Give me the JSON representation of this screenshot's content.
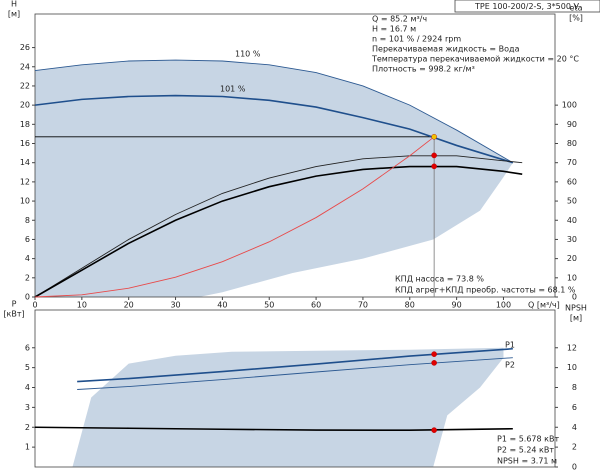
{
  "title": "TPE 100-200/2-S, 3*500 V",
  "chart_data": [
    {
      "type": "line",
      "ylabel": [
        "H",
        "[м]"
      ],
      "y2label": [
        "eta",
        "[%]"
      ],
      "xlabel": "Q [м³/ч]",
      "xlim": [
        0,
        111
      ],
      "xticks": [
        0,
        10,
        20,
        30,
        40,
        50,
        60,
        70,
        80,
        90,
        100
      ],
      "ylim": [
        0,
        29.5
      ],
      "yticks": [
        0,
        2,
        4,
        6,
        8,
        10,
        12,
        14,
        16,
        18,
        20,
        22,
        24,
        26
      ],
      "y2lim": [
        0,
        147.5
      ],
      "y2ticks": [
        0,
        10,
        20,
        30,
        40,
        50,
        60,
        70,
        80,
        90,
        100
      ],
      "area": {
        "color": "#c7d5e4",
        "x": [
          0,
          10,
          20,
          30,
          40,
          50,
          60,
          70,
          80,
          90,
          102,
          100,
          95,
          85,
          70,
          55,
          40,
          35,
          8,
          0
        ],
        "values": [
          23.6,
          24.2,
          24.6,
          24.7,
          24.6,
          24.2,
          23.4,
          22.0,
          20.0,
          17.4,
          14.0,
          12.5,
          9.0,
          6.0,
          4.0,
          2.5,
          0.5,
          0,
          0,
          0
        ]
      },
      "series": [
        {
          "name": "110 %",
          "color": "#2d5a92",
          "x": [
            0,
            10,
            20,
            30,
            40,
            50,
            60,
            70,
            80,
            90,
            102
          ],
          "values": [
            23.6,
            24.2,
            24.6,
            24.7,
            24.6,
            24.2,
            23.4,
            22.0,
            20.0,
            17.4,
            14.0
          ]
        },
        {
          "name": "101 %",
          "color": "#1f4f8c",
          "x": [
            0,
            10,
            20,
            30,
            40,
            50,
            60,
            70,
            80,
            90,
            102
          ],
          "values": [
            20.0,
            20.6,
            20.9,
            21.0,
            20.9,
            20.5,
            19.8,
            18.7,
            17.5,
            15.8,
            14.0
          ]
        },
        {
          "color": "#222222",
          "axis": "y2",
          "x": [
            0,
            10,
            20,
            30,
            40,
            50,
            60,
            70,
            80,
            90,
            100,
            104
          ],
          "values": [
            0,
            15,
            30,
            43,
            54,
            62,
            68,
            72,
            73.6,
            73.6,
            71,
            70
          ]
        },
        {
          "color": "#000000",
          "axis": "y2",
          "x": [
            0,
            10,
            20,
            30,
            40,
            50,
            60,
            70,
            80,
            90,
            100,
            104
          ],
          "values": [
            0,
            14,
            28,
            40,
            50,
            57.5,
            63,
            66.5,
            68,
            68,
            65.5,
            64
          ]
        },
        {
          "color": "#e84a4a",
          "x": [
            0,
            10,
            20,
            30,
            40,
            50,
            60,
            70,
            80,
            85.2
          ],
          "values": [
            0,
            0.23,
            0.92,
            2.07,
            3.68,
            5.75,
            8.28,
            11.27,
            14.72,
            16.7
          ]
        }
      ],
      "markers": [
        {
          "x": 85.2,
          "value": 16.7,
          "color": "#f2c200"
        },
        {
          "x": 85.2,
          "value": 73.8,
          "axis": "y2",
          "color": "#e00000"
        },
        {
          "x": 85.2,
          "value": 68.1,
          "axis": "y2",
          "color": "#e00000"
        }
      ],
      "annotations": [
        "Q = 85.2 м³/ч",
        "H = 16.7 м",
        "n = 101 % / 2924 rpm",
        "Перекачиваемая жидкость = Вода",
        "Температура перекачиваемой жидкости = 20 °C",
        "Плотность = 998.2 кг/м³"
      ],
      "notes": [
        "КПД насоса = 73.8 %",
        "КПД агрег+КПД преобр. частоты = 68.1 %"
      ]
    },
    {
      "type": "line",
      "ylabel": [
        "P",
        "[кВт]"
      ],
      "y2label": [
        "NPSH",
        "[м]"
      ],
      "xlim": [
        0,
        111
      ],
      "ylim": [
        0,
        7.9
      ],
      "yticks": [
        1,
        2,
        3,
        4,
        5,
        6
      ],
      "y2lim": [
        0,
        15.8
      ],
      "y2ticks": [
        0,
        2,
        4,
        6,
        8,
        10,
        12
      ],
      "area": {
        "color": "#c7d5e4",
        "x": [
          8,
          12,
          20,
          30,
          42,
          60,
          80,
          100,
          100,
          95,
          88,
          85,
          8
        ],
        "values": [
          0,
          3.5,
          5.2,
          5.6,
          5.8,
          5.85,
          5.9,
          6.0,
          5.5,
          4.0,
          2.6,
          0,
          0
        ]
      },
      "series": [
        {
          "name": "P1",
          "color": "#1f4f8c",
          "x": [
            9,
            20,
            40,
            60,
            80,
            102
          ],
          "values": [
            4.3,
            4.45,
            4.8,
            5.18,
            5.58,
            5.95
          ]
        },
        {
          "name": "P2",
          "color": "#2d5a92",
          "x": [
            9,
            20,
            40,
            60,
            80,
            102
          ],
          "values": [
            3.9,
            4.05,
            4.4,
            4.78,
            5.15,
            5.5
          ]
        },
        {
          "color": "#000000",
          "axis": "y2",
          "x": [
            0,
            20,
            40,
            60,
            80,
            102
          ],
          "values": [
            4.0,
            3.9,
            3.8,
            3.72,
            3.7,
            3.85
          ]
        }
      ],
      "markers": [
        {
          "x": 85.2,
          "value": 5.678,
          "color": "#e00000"
        },
        {
          "x": 85.2,
          "value": 5.24,
          "color": "#e00000"
        },
        {
          "x": 85.2,
          "value": 3.71,
          "axis": "y2",
          "color": "#e00000"
        }
      ],
      "notes": [
        "P1 = 5.678 кВт",
        "P2 = 5.24 кВт",
        "NPSH = 3.71 м"
      ]
    }
  ]
}
